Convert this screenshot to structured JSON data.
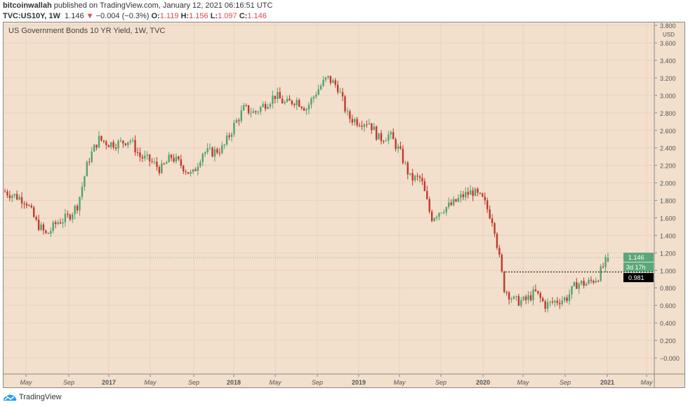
{
  "header": {
    "author": "bitcoinwallah",
    "published": "published on TradingView.com, January 12, 2021 06:16:51 UTC",
    "symbol": "TVC:US10Y, 1W",
    "last": "1.146",
    "arrow": "▼",
    "change": "−0.004 (−0.3%)",
    "o_label": "O:",
    "o": "1.119",
    "h_label": "H:",
    "h": "1.156",
    "l_label": "L:",
    "l": "1.097",
    "c_label": "C:",
    "c": "1.146"
  },
  "footer": {
    "brand": "TradingView"
  },
  "colors": {
    "up": "#53a46e",
    "down": "#c0392b",
    "bg": "#f2dfcc"
  },
  "chart_data": {
    "type": "candlestick",
    "title": "US Government Bonds 10 YR Yield, 1W, TVC",
    "currency": "USD",
    "ylim": [
      -0.1,
      3.85
    ],
    "yticks": [
      "3.800",
      "3.600",
      "3.400",
      "3.200",
      "3.000",
      "2.800",
      "2.600",
      "2.400",
      "2.200",
      "2.000",
      "1.800",
      "1.600",
      "1.400",
      "1.200",
      "1.000",
      "0.800",
      "0.600",
      "0.400",
      "0.200",
      "−0.000"
    ],
    "xticks": [
      {
        "label": "May",
        "bold": false
      },
      {
        "label": "Sep",
        "bold": false
      },
      {
        "label": "2017",
        "bold": true
      },
      {
        "label": "May",
        "bold": false
      },
      {
        "label": "Sep",
        "bold": false
      },
      {
        "label": "2018",
        "bold": true
      },
      {
        "label": "May",
        "bold": false
      },
      {
        "label": "Sep",
        "bold": false
      },
      {
        "label": "2019",
        "bold": true
      },
      {
        "label": "May",
        "bold": false
      },
      {
        "label": "Sep",
        "bold": false
      },
      {
        "label": "2020",
        "bold": true
      },
      {
        "label": "May",
        "bold": false
      },
      {
        "label": "Sep",
        "bold": false
      },
      {
        "label": "2021",
        "bold": true
      },
      {
        "label": "May",
        "bold": false
      }
    ],
    "monthly_close_approx": [
      1.9,
      1.85,
      1.8,
      1.55,
      1.4,
      1.55,
      1.6,
      1.75,
      2.25,
      2.5,
      2.45,
      2.45,
      2.5,
      2.3,
      2.25,
      2.15,
      2.3,
      2.2,
      2.08,
      2.35,
      2.35,
      2.4,
      2.65,
      2.85,
      2.8,
      2.9,
      3.0,
      2.9,
      2.95,
      2.85,
      3.05,
      3.2,
      3.1,
      2.75,
      2.7,
      2.7,
      2.5,
      2.55,
      2.35,
      2.05,
      2.05,
      1.6,
      1.7,
      1.75,
      1.85,
      1.9,
      1.8,
      1.55,
      0.8,
      0.65,
      0.65,
      0.75,
      0.6,
      0.65,
      0.68,
      0.85,
      0.85,
      0.92,
      1.146
    ],
    "last_price": "1.146",
    "countdown": "3d 17h",
    "horizontal_line": "0.981"
  }
}
